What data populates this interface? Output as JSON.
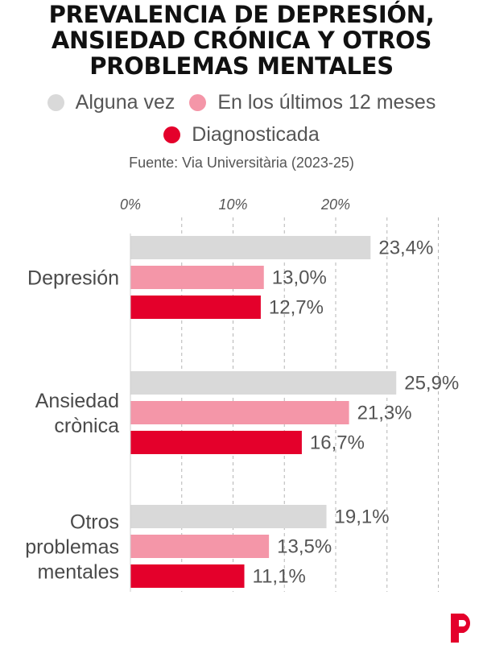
{
  "title_lines": [
    "PREVALENCIA DE DEPRESIÓN,",
    "ANSIEDAD CRÓNICA Y OTROS",
    "PROBLEMAS MENTALES"
  ],
  "source": "Fuente: Via Universitària (2023-25)",
  "colors": {
    "series": [
      "#d9d9d9",
      "#f496a8",
      "#e4002b"
    ],
    "grid": "#b5b5b5",
    "logo": "#e4002b"
  },
  "chart_data": {
    "type": "bar",
    "orientation": "horizontal",
    "categories": [
      [
        "Depresión"
      ],
      [
        "Ansiedad",
        "crònica"
      ],
      [
        "Otros",
        "problemas",
        "mentales"
      ]
    ],
    "series": [
      {
        "name": "Alguna vez",
        "values": [
          23.4,
          25.9,
          19.1
        ],
        "labels": [
          "23,4%",
          "25,9%",
          "19,1%"
        ]
      },
      {
        "name": "En los últimos 12 meses",
        "values": [
          13.0,
          21.3,
          13.5
        ],
        "labels": [
          "13,0%",
          "21,3%",
          "13,5%"
        ]
      },
      {
        "name": "Diagnosticada",
        "values": [
          12.7,
          16.7,
          11.1
        ],
        "labels": [
          "12,7%",
          "16,7%",
          "11,1%"
        ]
      }
    ],
    "x_ticks": [
      0,
      10,
      20
    ],
    "x_tick_labels": [
      "0%",
      "10%",
      "20%"
    ],
    "xlim": [
      0,
      30
    ],
    "grid": true,
    "legend_position": "top"
  }
}
